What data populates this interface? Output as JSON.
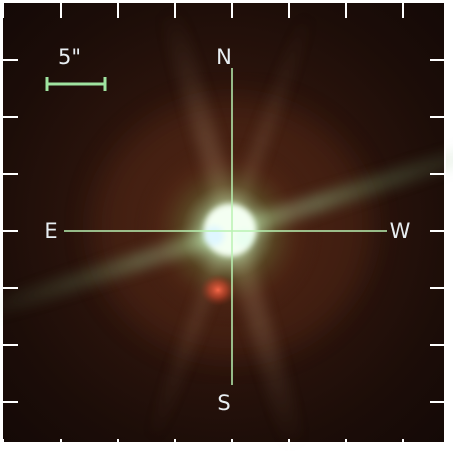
{
  "image": {
    "compass": {
      "north": "N",
      "south": "S",
      "east": "E",
      "west": "W"
    },
    "scale_bar": {
      "label": "5\""
    },
    "colors": {
      "sky": "#1a0d08",
      "crosshair": "#b9f2b2",
      "scale_bar": "#9fe3a0",
      "tick": "#ffffff",
      "label": "#e8eef2"
    }
  }
}
